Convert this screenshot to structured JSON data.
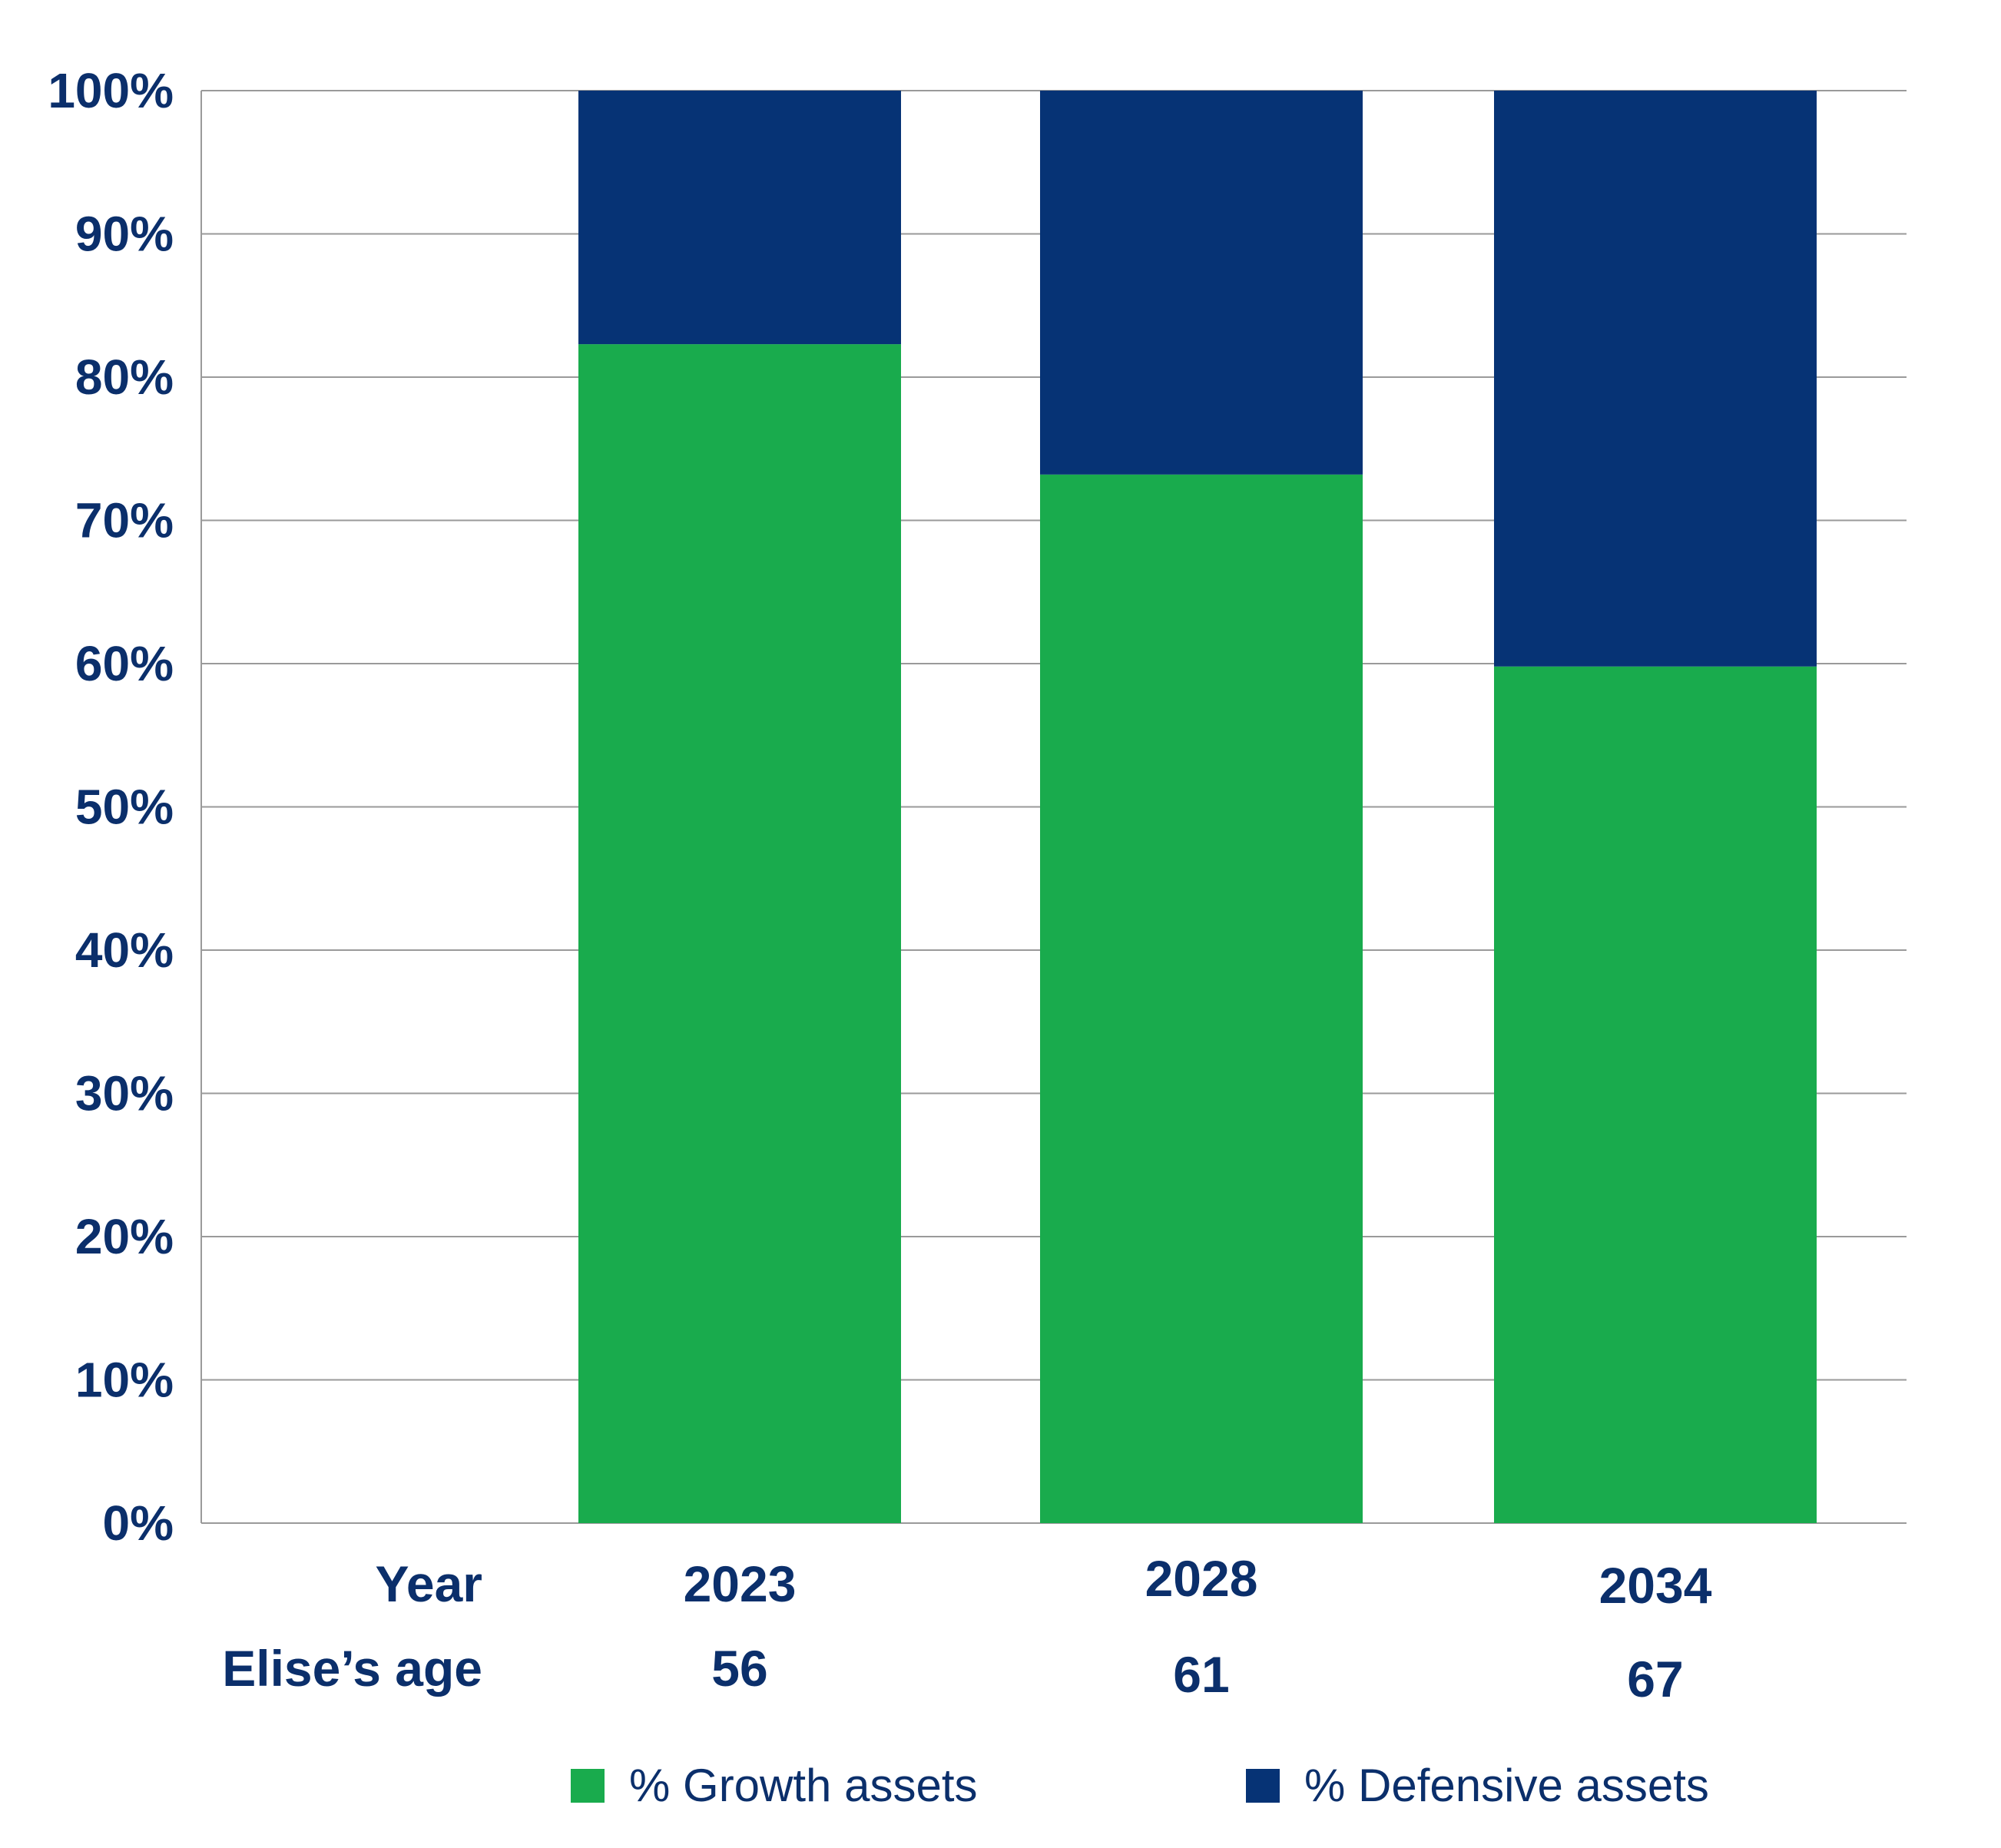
{
  "chart_data": {
    "type": "bar",
    "stacked": true,
    "categories": [
      "2023",
      "2028",
      "2034"
    ],
    "row_labels": {
      "year": "Year",
      "age": "Elise’s age"
    },
    "ages": [
      "56",
      "61",
      "67"
    ],
    "series": [
      {
        "name": "% Growth assets",
        "color": "#19AB4D",
        "values": [
          82.3,
          73.2,
          59.8
        ]
      },
      {
        "name": "% Defensive assets",
        "color": "#063375",
        "values": [
          17.7,
          26.8,
          40.2
        ]
      }
    ],
    "ylim": [
      0,
      100
    ],
    "yticks": [
      "0%",
      "10%",
      "20%",
      "30%",
      "40%",
      "50%",
      "60%",
      "70%",
      "80%",
      "90%",
      "100%"
    ],
    "grid": true,
    "legend_position": "bottom",
    "text_color": "#0B2F6B"
  }
}
